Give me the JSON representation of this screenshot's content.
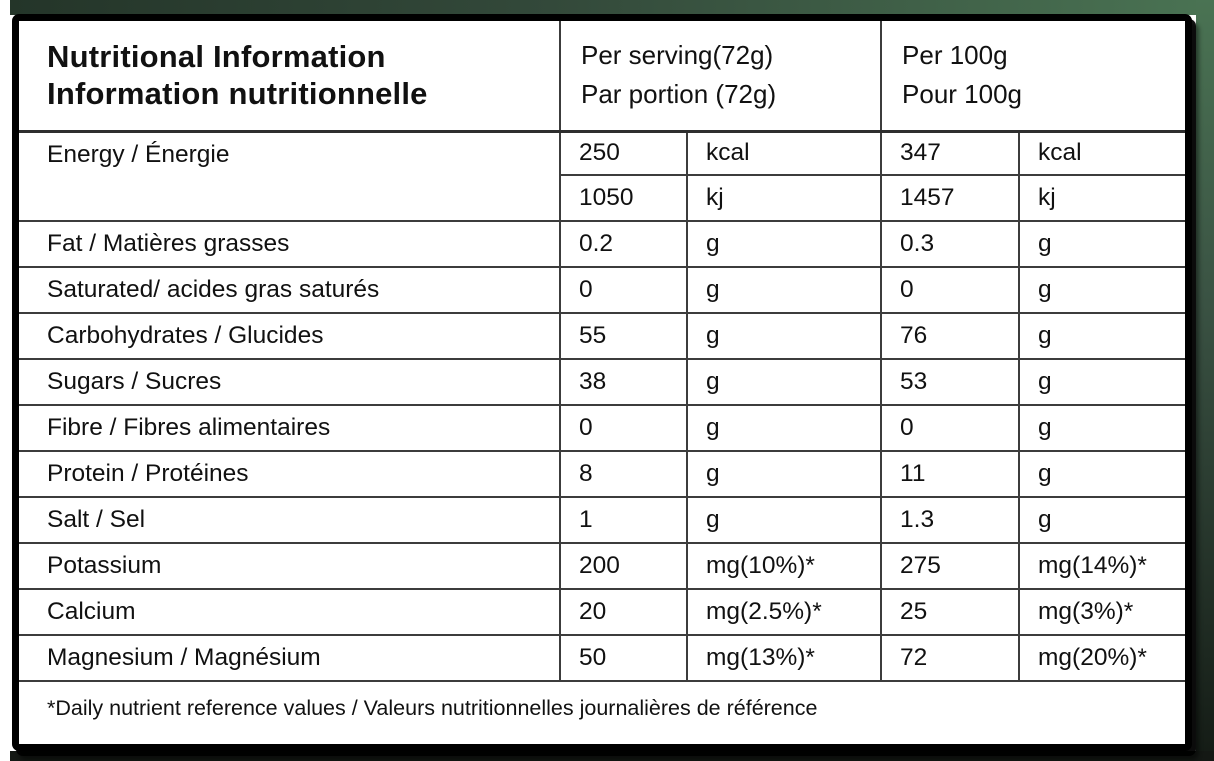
{
  "title": {
    "line1": "Nutritional Information",
    "line2": "Information nutritionnelle"
  },
  "columns": {
    "per_serving": {
      "line1": "Per serving(72g)",
      "line2": "Par portion (72g)"
    },
    "per_100g": {
      "line1": "Per 100g",
      "line2": "Pour 100g"
    }
  },
  "energy": {
    "label": "Energy / Énergie",
    "rows": [
      {
        "serving_value": "250",
        "serving_unit": "kcal",
        "per_100g_value": "347",
        "per_100g_unit": "kcal"
      },
      {
        "serving_value": "1050",
        "serving_unit": "kj",
        "per_100g_value": "1457",
        "per_100g_unit": "kj"
      }
    ]
  },
  "rows": [
    {
      "label": "Fat / Matières grasses",
      "serving_value": "0.2",
      "serving_unit": "g",
      "per_100g_value": "0.3",
      "per_100g_unit": "g"
    },
    {
      "label": "Saturated/ acides gras saturés",
      "serving_value": "0",
      "serving_unit": "g",
      "per_100g_value": "0",
      "per_100g_unit": "g"
    },
    {
      "label": "Carbohydrates / Glucides",
      "serving_value": "55",
      "serving_unit": "g",
      "per_100g_value": "76",
      "per_100g_unit": "g"
    },
    {
      "label": "Sugars / Sucres",
      "serving_value": "38",
      "serving_unit": "g",
      "per_100g_value": "53",
      "per_100g_unit": "g"
    },
    {
      "label": "Fibre / Fibres alimentaires",
      "serving_value": "0",
      "serving_unit": "g",
      "per_100g_value": "0",
      "per_100g_unit": "g"
    },
    {
      "label": "Protein / Protéines",
      "serving_value": "8",
      "serving_unit": "g",
      "per_100g_value": "11",
      "per_100g_unit": "g"
    },
    {
      "label": "Salt / Sel",
      "serving_value": "1",
      "serving_unit": "g",
      "per_100g_value": "1.3",
      "per_100g_unit": "g"
    },
    {
      "label": "Potassium",
      "serving_value": "200",
      "serving_unit": "mg(10%)*",
      "per_100g_value": "275",
      "per_100g_unit": "mg(14%)*"
    },
    {
      "label": "Calcium",
      "serving_value": "20",
      "serving_unit": "mg(2.5%)*",
      "per_100g_value": "25",
      "per_100g_unit": "mg(3%)*"
    },
    {
      "label": "Magnesium / Magnésium",
      "serving_value": "50",
      "serving_unit": "mg(13%)*",
      "per_100g_value": "72",
      "per_100g_unit": "mg(20%)*"
    }
  ],
  "footnote": "*Daily nutrient reference values / Valeurs nutritionnelles journalières de référence",
  "colors": {
    "label_background": "#ffffff",
    "border": "#000000",
    "grid_line": "#3c3c3c",
    "text": "#111111",
    "package_green": "#4a7353"
  }
}
